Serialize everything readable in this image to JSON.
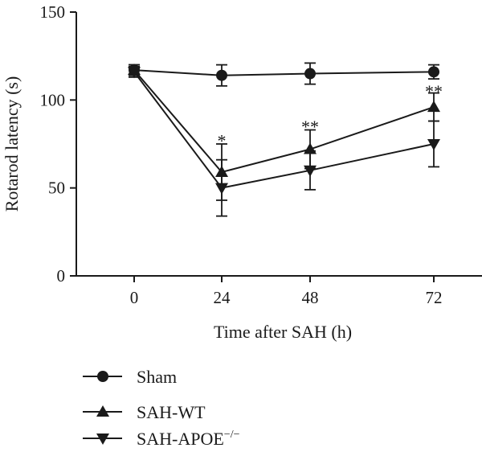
{
  "chart_data": {
    "type": "line",
    "title": "",
    "xlabel": "Time after SAH (h)",
    "ylabel": "Rotarod latency (s)",
    "x": [
      0,
      24,
      48,
      72
    ],
    "x_tick_labels": [
      "0",
      "24",
      "48",
      "72"
    ],
    "ylim": [
      0,
      150
    ],
    "y_ticks": [
      0,
      50,
      100,
      150
    ],
    "y_tick_labels": [
      "0",
      "50",
      "100",
      "150"
    ],
    "grid": false,
    "legend_position": "bottom-left",
    "series": [
      {
        "name": "Sham",
        "marker": "circle",
        "values": [
          117,
          114,
          115,
          116
        ],
        "errors": [
          3,
          6,
          6,
          4
        ]
      },
      {
        "name": "SAH-WT",
        "marker": "triangle-up",
        "values": [
          117,
          59,
          72,
          96
        ],
        "errors": [
          3,
          16,
          11,
          8
        ]
      },
      {
        "name": "SAH-APOE",
        "name_superscript": "−/−",
        "marker": "triangle-down",
        "values": [
          116,
          50,
          60,
          75
        ],
        "errors": [
          3,
          16,
          11,
          13
        ]
      }
    ],
    "annotations": [
      {
        "x": 24,
        "y": 78,
        "text": "*"
      },
      {
        "x": 48,
        "y": 86,
        "text": "**"
      },
      {
        "x": 72,
        "y": 106,
        "text": "**"
      }
    ],
    "colors": {
      "ink": "#1a1a1a",
      "background": "#ffffff"
    }
  }
}
